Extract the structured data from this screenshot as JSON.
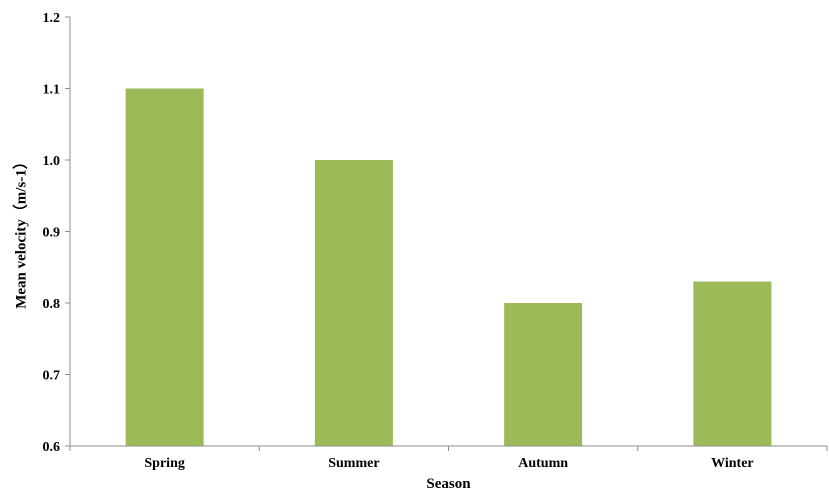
{
  "chart_data": {
    "type": "bar",
    "title": "",
    "xlabel": "Season",
    "ylabel": "Mean velocity（m/s-1）",
    "categories": [
      "Spring",
      "Summer",
      "Autumn",
      "Winter"
    ],
    "values": [
      1.1,
      1.0,
      0.8,
      0.83
    ],
    "ylim": [
      0.6,
      1.2
    ],
    "yticks": [
      "0.6",
      "0.7",
      "0.8",
      "0.9",
      "1.0",
      "1.1",
      "1.2"
    ],
    "bar_color": "#9bbb59",
    "axis_color": "#8c8c8c",
    "grid": false,
    "legend": "none"
  }
}
